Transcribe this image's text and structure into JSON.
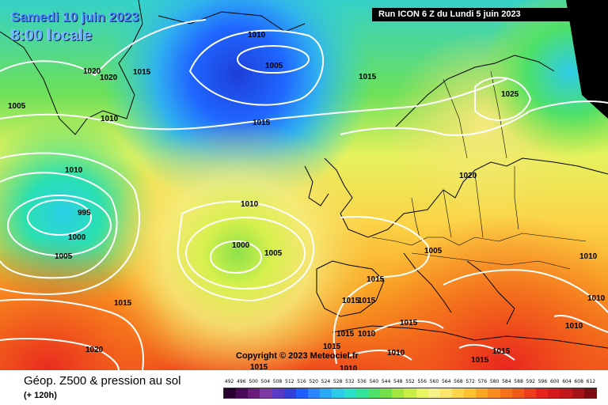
{
  "header": {
    "date": "Samedi 10 juin 2023",
    "time": "8:00 locale",
    "run": "Run ICON 6 Z du Lundi 5 juin 2023"
  },
  "copyright": "Copyright © 2023 Meteociel.fr",
  "legend": {
    "title": "Géop. Z500 & pression au sol",
    "subtitle": "(+ 120h)",
    "scale_values": [
      "492",
      "496",
      "500",
      "504",
      "508",
      "512",
      "516",
      "520",
      "524",
      "528",
      "532",
      "536",
      "540",
      "544",
      "548",
      "552",
      "556",
      "560",
      "564",
      "568",
      "572",
      "576",
      "580",
      "584",
      "588",
      "592",
      "596",
      "600",
      "604",
      "608",
      "612"
    ],
    "scale_colors": [
      "#2a0030",
      "#4b0a55",
      "#6b1b79",
      "#7d3aa0",
      "#5a3bc8",
      "#3341d9",
      "#1f5fff",
      "#2d86ff",
      "#2aaaf4",
      "#2ecbe8",
      "#2be0c9",
      "#33e39a",
      "#4de06a",
      "#76e04a",
      "#a3e63f",
      "#c9ee46",
      "#e9f463",
      "#f7f18a",
      "#fbe56d",
      "#fcd44a",
      "#fbc12e",
      "#faa824",
      "#f88c1e",
      "#f5721b",
      "#f25a1a",
      "#ee3d1c",
      "#e6231e",
      "#d51a1e",
      "#c2171b",
      "#a51217",
      "#7c0c10"
    ]
  },
  "isobar_labels": [
    "1010",
    "1005",
    "1020",
    "1020",
    "1015",
    "1005",
    "1015",
    "1025",
    "1010",
    "1015",
    "1010",
    "995",
    "1010",
    "1020",
    "1000",
    "1000",
    "1005",
    "1005",
    "1005",
    "1015",
    "1015",
    "1015",
    "1015",
    "1015",
    "1015",
    "1010",
    "1010",
    "1010",
    "1020",
    "1015",
    "1015",
    "1015",
    "1010",
    "1010",
    "1015",
    "1010"
  ]
}
